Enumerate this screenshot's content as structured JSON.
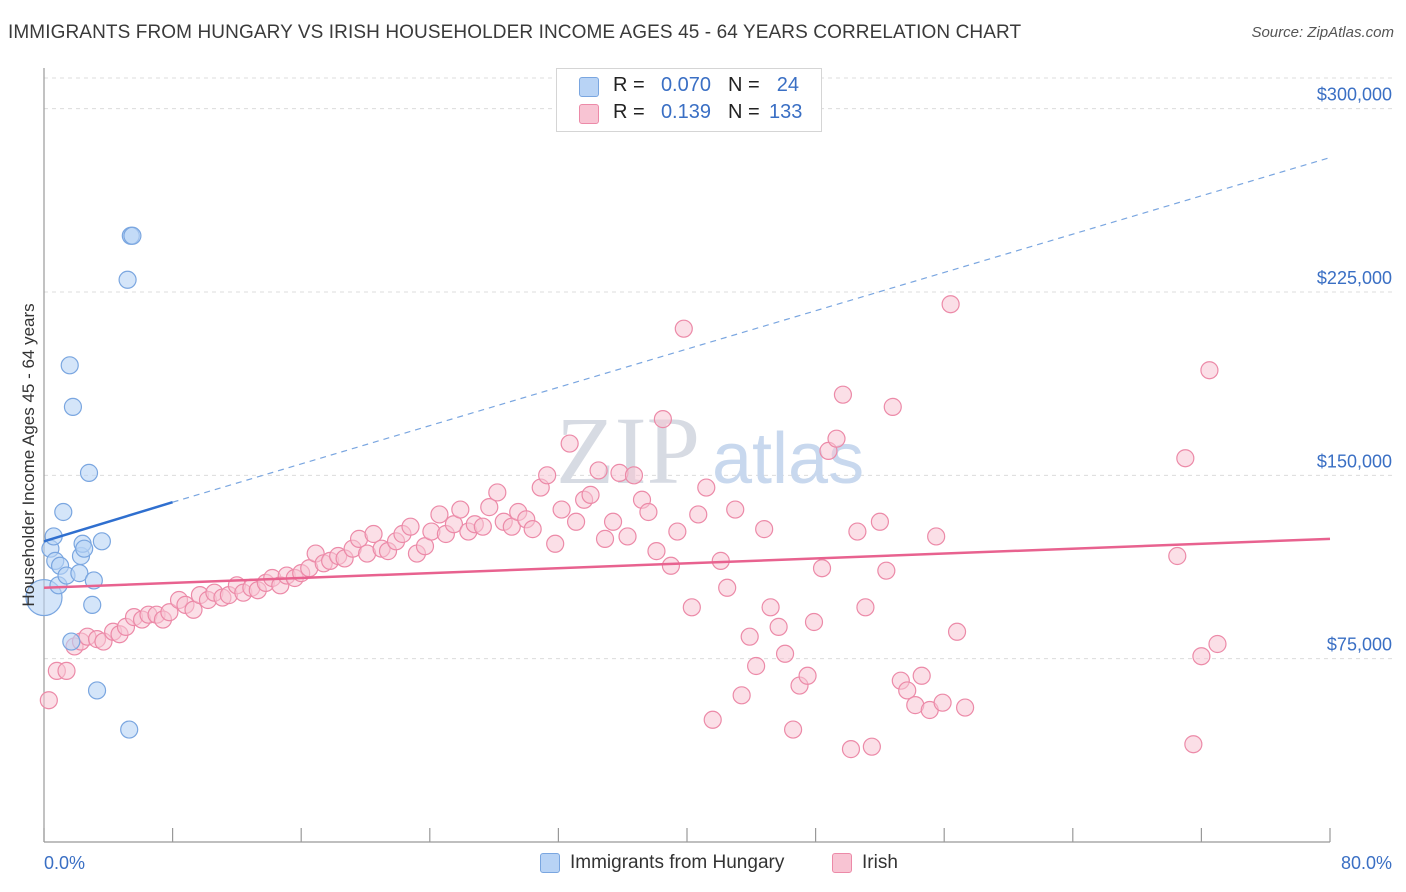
{
  "header": {
    "title": "IMMIGRANTS FROM HUNGARY VS IRISH HOUSEHOLDER INCOME AGES 45 - 64 YEARS CORRELATION CHART",
    "source": "Source: ZipAtlas.com"
  },
  "legend": {
    "rows": [
      {
        "r_label": "R =",
        "r_value": "0.070",
        "n_label": "N =",
        "n_value": "24"
      },
      {
        "r_label": "R =",
        "r_value": "0.139",
        "n_label": "N =",
        "n_value": "133"
      }
    ]
  },
  "watermark": {
    "zip": "ZIP",
    "atlas": "atlas"
  },
  "colors": {
    "blue_fill": "#b8d3f5",
    "blue_stroke": "#7aa6e0",
    "blue_line": "#2f6fcf",
    "pink_fill": "#f8c4d3",
    "pink_stroke": "#ec8aa8",
    "pink_line": "#e8628f",
    "tick_text": "#3a6fc4",
    "grid": "#dcdcdc"
  },
  "chart_data": {
    "type": "scatter",
    "title": "IMMIGRANTS FROM HUNGARY VS IRISH HOUSEHOLDER INCOME AGES 45 - 64 YEARS CORRELATION CHART",
    "xlabel": "",
    "ylabel": "Householder Income Ages 45 - 64 years",
    "xlim": [
      0,
      80
    ],
    "ylim": [
      0,
      315000
    ],
    "x_tick_labels": [
      "0.0%",
      "80.0%"
    ],
    "y_ticks": [
      75000,
      150000,
      225000,
      300000
    ],
    "y_tick_labels": [
      "$75,000",
      "$150,000",
      "$225,000",
      "$300,000"
    ],
    "grid": true,
    "legend_position": "top-center",
    "series": [
      {
        "name": "Immigrants from Hungary",
        "color": "#b8d3f5",
        "R": 0.07,
        "N": 24,
        "trend": {
          "x0": 0,
          "y0": 123000,
          "x1": 8,
          "y1": 139000,
          "dash_x1": 80,
          "dash_y1": 280000
        },
        "points": [
          [
            0.0,
            100000
          ],
          [
            0.4,
            120000
          ],
          [
            0.6,
            125000
          ],
          [
            0.7,
            115000
          ],
          [
            0.9,
            105000
          ],
          [
            1.0,
            113000
          ],
          [
            1.2,
            135000
          ],
          [
            1.4,
            109000
          ],
          [
            1.6,
            195000
          ],
          [
            1.7,
            82000
          ],
          [
            1.8,
            178000
          ],
          [
            2.2,
            110000
          ],
          [
            2.3,
            117000
          ],
          [
            2.4,
            122000
          ],
          [
            2.5,
            120000
          ],
          [
            2.8,
            151000
          ],
          [
            3.0,
            97000
          ],
          [
            3.1,
            107000
          ],
          [
            3.3,
            62000
          ],
          [
            3.6,
            123000
          ],
          [
            5.4,
            248000
          ],
          [
            5.3,
            46000
          ],
          [
            5.2,
            230000
          ],
          [
            5.5,
            248000
          ]
        ]
      },
      {
        "name": "Irish",
        "color": "#f8c4d3",
        "R": 0.139,
        "N": 133,
        "trend": {
          "x0": 0,
          "y0": 104000,
          "x1": 80,
          "y1": 124000
        },
        "points": [
          [
            0.3,
            58000
          ],
          [
            0.8,
            70000
          ],
          [
            1.4,
            70000
          ],
          [
            1.9,
            80000
          ],
          [
            2.3,
            82000
          ],
          [
            2.7,
            84000
          ],
          [
            3.3,
            83000
          ],
          [
            3.7,
            82000
          ],
          [
            4.3,
            86000
          ],
          [
            4.7,
            85000
          ],
          [
            5.1,
            88000
          ],
          [
            5.6,
            92000
          ],
          [
            6.1,
            91000
          ],
          [
            6.5,
            93000
          ],
          [
            7.0,
            93000
          ],
          [
            7.4,
            91000
          ],
          [
            7.8,
            94000
          ],
          [
            8.4,
            99000
          ],
          [
            8.8,
            97000
          ],
          [
            9.3,
            95000
          ],
          [
            9.7,
            101000
          ],
          [
            10.2,
            99000
          ],
          [
            10.6,
            102000
          ],
          [
            11.1,
            100000
          ],
          [
            11.5,
            101000
          ],
          [
            12.0,
            105000
          ],
          [
            12.4,
            102000
          ],
          [
            12.9,
            104000
          ],
          [
            13.3,
            103000
          ],
          [
            13.8,
            106000
          ],
          [
            14.2,
            108000
          ],
          [
            14.7,
            105000
          ],
          [
            15.1,
            109000
          ],
          [
            15.6,
            108000
          ],
          [
            16.0,
            110000
          ],
          [
            16.5,
            112000
          ],
          [
            16.9,
            118000
          ],
          [
            17.4,
            114000
          ],
          [
            17.8,
            115000
          ],
          [
            18.3,
            117000
          ],
          [
            18.7,
            116000
          ],
          [
            19.2,
            120000
          ],
          [
            19.6,
            124000
          ],
          [
            20.1,
            118000
          ],
          [
            20.5,
            126000
          ],
          [
            21.0,
            120000
          ],
          [
            21.4,
            119000
          ],
          [
            21.9,
            123000
          ],
          [
            22.3,
            126000
          ],
          [
            22.8,
            129000
          ],
          [
            23.2,
            118000
          ],
          [
            23.7,
            121000
          ],
          [
            24.1,
            127000
          ],
          [
            24.6,
            134000
          ],
          [
            25.0,
            126000
          ],
          [
            25.5,
            130000
          ],
          [
            25.9,
            136000
          ],
          [
            26.4,
            127000
          ],
          [
            26.8,
            130000
          ],
          [
            27.3,
            129000
          ],
          [
            27.7,
            137000
          ],
          [
            28.2,
            143000
          ],
          [
            28.6,
            131000
          ],
          [
            29.1,
            129000
          ],
          [
            29.5,
            135000
          ],
          [
            30.0,
            132000
          ],
          [
            30.4,
            128000
          ],
          [
            30.9,
            145000
          ],
          [
            31.3,
            150000
          ],
          [
            31.8,
            122000
          ],
          [
            32.2,
            136000
          ],
          [
            32.7,
            163000
          ],
          [
            33.1,
            131000
          ],
          [
            33.6,
            140000
          ],
          [
            34.0,
            142000
          ],
          [
            34.5,
            152000
          ],
          [
            34.9,
            124000
          ],
          [
            35.4,
            131000
          ],
          [
            35.8,
            151000
          ],
          [
            36.3,
            125000
          ],
          [
            36.7,
            150000
          ],
          [
            37.2,
            140000
          ],
          [
            37.6,
            135000
          ],
          [
            38.1,
            119000
          ],
          [
            38.5,
            173000
          ],
          [
            39.0,
            113000
          ],
          [
            39.4,
            127000
          ],
          [
            39.8,
            210000
          ],
          [
            40.3,
            96000
          ],
          [
            40.7,
            134000
          ],
          [
            41.2,
            145000
          ],
          [
            41.6,
            50000
          ],
          [
            42.1,
            115000
          ],
          [
            42.5,
            104000
          ],
          [
            43.0,
            136000
          ],
          [
            43.4,
            60000
          ],
          [
            43.9,
            84000
          ],
          [
            44.3,
            72000
          ],
          [
            44.8,
            128000
          ],
          [
            45.2,
            96000
          ],
          [
            45.7,
            88000
          ],
          [
            46.1,
            77000
          ],
          [
            46.6,
            46000
          ],
          [
            47.0,
            64000
          ],
          [
            47.5,
            68000
          ],
          [
            47.9,
            90000
          ],
          [
            48.4,
            112000
          ],
          [
            48.8,
            160000
          ],
          [
            49.3,
            165000
          ],
          [
            49.7,
            183000
          ],
          [
            50.2,
            38000
          ],
          [
            50.6,
            127000
          ],
          [
            51.1,
            96000
          ],
          [
            51.5,
            39000
          ],
          [
            52.0,
            131000
          ],
          [
            52.4,
            111000
          ],
          [
            52.8,
            178000
          ],
          [
            53.3,
            66000
          ],
          [
            53.7,
            62000
          ],
          [
            54.2,
            56000
          ],
          [
            54.6,
            68000
          ],
          [
            55.1,
            54000
          ],
          [
            55.5,
            125000
          ],
          [
            55.9,
            57000
          ],
          [
            56.4,
            220000
          ],
          [
            56.8,
            86000
          ],
          [
            57.3,
            55000
          ],
          [
            70.5,
            117000
          ],
          [
            71.0,
            157000
          ],
          [
            71.5,
            40000
          ],
          [
            72.0,
            76000
          ],
          [
            72.5,
            193000
          ],
          [
            73.0,
            81000
          ]
        ]
      }
    ]
  },
  "bottom_legend": {
    "items": [
      {
        "label": "Immigrants from Hungary"
      },
      {
        "label": "Irish"
      }
    ]
  }
}
